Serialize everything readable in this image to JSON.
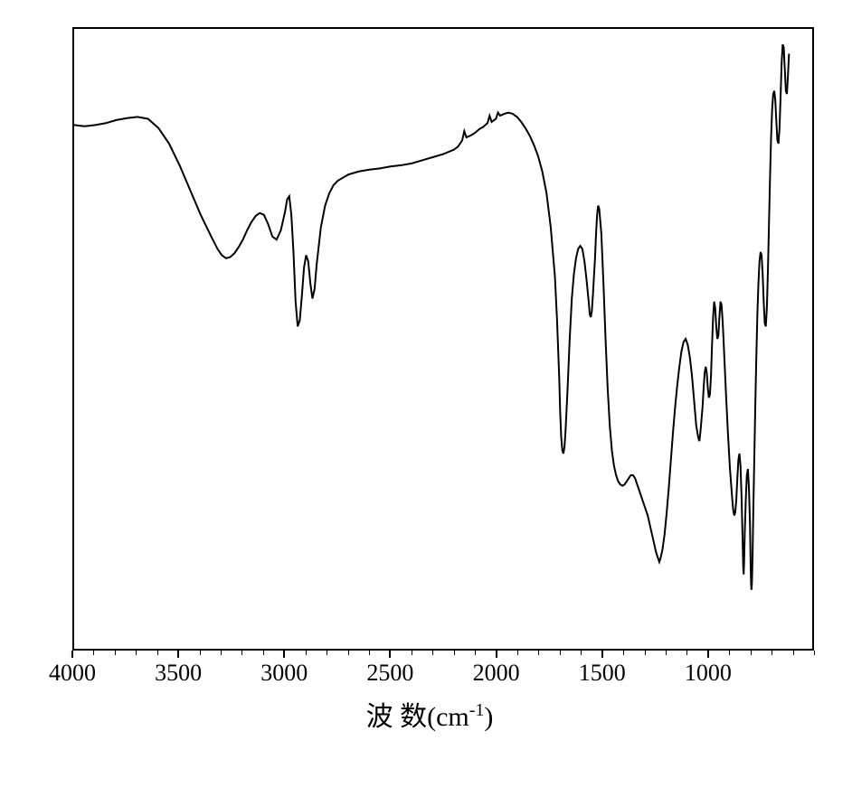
{
  "chart": {
    "type": "line",
    "x_axis": {
      "label_prefix": "波 数",
      "label_unit_open": "(cm",
      "label_unit_exp": "-1",
      "label_unit_close": ")",
      "min": 4000,
      "max": 500,
      "tick_labels": [
        "4000",
        "3500",
        "3000",
        "2500",
        "2000",
        "1500",
        "1000"
      ],
      "tick_values": [
        4000,
        3500,
        3000,
        2500,
        2000,
        1500,
        1000
      ],
      "minor_tick_step": 100,
      "label_fontsize": 26,
      "title_fontsize": 30
    },
    "y_axis": {
      "show_ticks": false,
      "show_labels": false,
      "min": 0,
      "max": 100
    },
    "line_color": "#000000",
    "line_width": 2,
    "border_color": "#000000",
    "border_width": 2,
    "background_color": "#ffffff",
    "data_points": [
      [
        4000,
        84.5
      ],
      [
        3950,
        84.3
      ],
      [
        3900,
        84.5
      ],
      [
        3850,
        84.8
      ],
      [
        3800,
        85.3
      ],
      [
        3750,
        85.6
      ],
      [
        3700,
        85.8
      ],
      [
        3650,
        85.5
      ],
      [
        3600,
        84.0
      ],
      [
        3550,
        81.5
      ],
      [
        3500,
        78.0
      ],
      [
        3450,
        74.0
      ],
      [
        3400,
        70.0
      ],
      [
        3350,
        66.5
      ],
      [
        3320,
        64.5
      ],
      [
        3300,
        63.5
      ],
      [
        3280,
        63.0
      ],
      [
        3260,
        63.2
      ],
      [
        3240,
        63.8
      ],
      [
        3220,
        64.8
      ],
      [
        3200,
        66.0
      ],
      [
        3180,
        67.5
      ],
      [
        3160,
        68.8
      ],
      [
        3140,
        69.8
      ],
      [
        3120,
        70.3
      ],
      [
        3100,
        70.0
      ],
      [
        3080,
        68.5
      ],
      [
        3060,
        66.5
      ],
      [
        3040,
        66.0
      ],
      [
        3020,
        67.5
      ],
      [
        3000,
        70.5
      ],
      [
        2990,
        72.5
      ],
      [
        2980,
        73.0
      ],
      [
        2970,
        70.0
      ],
      [
        2960,
        64.0
      ],
      [
        2950,
        56.0
      ],
      [
        2940,
        52.0
      ],
      [
        2930,
        53.0
      ],
      [
        2920,
        57.0
      ],
      [
        2910,
        61.5
      ],
      [
        2900,
        63.5
      ],
      [
        2890,
        62.5
      ],
      [
        2880,
        59.0
      ],
      [
        2870,
        56.5
      ],
      [
        2860,
        58.0
      ],
      [
        2850,
        62.0
      ],
      [
        2830,
        68.0
      ],
      [
        2810,
        71.5
      ],
      [
        2790,
        73.5
      ],
      [
        2770,
        74.8
      ],
      [
        2750,
        75.5
      ],
      [
        2700,
        76.5
      ],
      [
        2650,
        77.0
      ],
      [
        2600,
        77.3
      ],
      [
        2550,
        77.5
      ],
      [
        2500,
        77.8
      ],
      [
        2450,
        78.0
      ],
      [
        2400,
        78.3
      ],
      [
        2350,
        78.8
      ],
      [
        2300,
        79.3
      ],
      [
        2250,
        79.8
      ],
      [
        2200,
        80.5
      ],
      [
        2180,
        81.0
      ],
      [
        2160,
        82.0
      ],
      [
        2150,
        83.5
      ],
      [
        2140,
        82.5
      ],
      [
        2120,
        82.8
      ],
      [
        2100,
        83.2
      ],
      [
        2080,
        83.8
      ],
      [
        2060,
        84.2
      ],
      [
        2040,
        84.8
      ],
      [
        2030,
        86.0
      ],
      [
        2020,
        85.0
      ],
      [
        2000,
        85.5
      ],
      [
        1990,
        86.5
      ],
      [
        1980,
        86.0
      ],
      [
        1960,
        86.3
      ],
      [
        1940,
        86.5
      ],
      [
        1920,
        86.3
      ],
      [
        1900,
        85.8
      ],
      [
        1880,
        85.0
      ],
      [
        1860,
        84.0
      ],
      [
        1840,
        82.8
      ],
      [
        1820,
        81.3
      ],
      [
        1800,
        79.5
      ],
      [
        1780,
        77.0
      ],
      [
        1760,
        73.5
      ],
      [
        1740,
        68.0
      ],
      [
        1720,
        60.0
      ],
      [
        1710,
        53.0
      ],
      [
        1700,
        44.0
      ],
      [
        1695,
        38.0
      ],
      [
        1690,
        34.0
      ],
      [
        1685,
        32.0
      ],
      [
        1680,
        31.5
      ],
      [
        1675,
        32.5
      ],
      [
        1670,
        35.0
      ],
      [
        1660,
        42.0
      ],
      [
        1650,
        50.0
      ],
      [
        1640,
        56.5
      ],
      [
        1630,
        60.5
      ],
      [
        1620,
        63.0
      ],
      [
        1610,
        64.5
      ],
      [
        1600,
        65.0
      ],
      [
        1590,
        64.5
      ],
      [
        1580,
        62.5
      ],
      [
        1570,
        59.5
      ],
      [
        1560,
        56.0
      ],
      [
        1555,
        54.0
      ],
      [
        1550,
        53.5
      ],
      [
        1545,
        54.5
      ],
      [
        1540,
        57.0
      ],
      [
        1530,
        63.0
      ],
      [
        1525,
        67.0
      ],
      [
        1520,
        70.0
      ],
      [
        1515,
        71.5
      ],
      [
        1510,
        71.0
      ],
      [
        1500,
        67.0
      ],
      [
        1490,
        59.0
      ],
      [
        1480,
        50.0
      ],
      [
        1470,
        42.0
      ],
      [
        1460,
        36.0
      ],
      [
        1450,
        32.0
      ],
      [
        1440,
        29.5
      ],
      [
        1430,
        28.0
      ],
      [
        1420,
        27.0
      ],
      [
        1410,
        26.5
      ],
      [
        1400,
        26.3
      ],
      [
        1390,
        26.5
      ],
      [
        1380,
        27.0
      ],
      [
        1370,
        27.5
      ],
      [
        1360,
        28.0
      ],
      [
        1350,
        28.0
      ],
      [
        1340,
        27.5
      ],
      [
        1330,
        26.5
      ],
      [
        1320,
        25.5
      ],
      [
        1310,
        24.5
      ],
      [
        1300,
        23.5
      ],
      [
        1290,
        22.5
      ],
      [
        1280,
        21.5
      ],
      [
        1270,
        20.0
      ],
      [
        1260,
        18.5
      ],
      [
        1250,
        17.0
      ],
      [
        1240,
        15.5
      ],
      [
        1230,
        14.5
      ],
      [
        1225,
        14.0
      ],
      [
        1220,
        14.5
      ],
      [
        1210,
        16.0
      ],
      [
        1200,
        18.5
      ],
      [
        1190,
        22.0
      ],
      [
        1180,
        26.0
      ],
      [
        1170,
        30.5
      ],
      [
        1160,
        35.0
      ],
      [
        1150,
        39.0
      ],
      [
        1140,
        42.5
      ],
      [
        1130,
        45.5
      ],
      [
        1120,
        48.0
      ],
      [
        1110,
        49.5
      ],
      [
        1100,
        50.0
      ],
      [
        1090,
        49.0
      ],
      [
        1080,
        47.0
      ],
      [
        1070,
        44.0
      ],
      [
        1060,
        40.0
      ],
      [
        1050,
        36.0
      ],
      [
        1040,
        34.0
      ],
      [
        1035,
        33.5
      ],
      [
        1030,
        35.0
      ],
      [
        1020,
        39.0
      ],
      [
        1015,
        42.0
      ],
      [
        1010,
        44.5
      ],
      [
        1005,
        45.5
      ],
      [
        1000,
        44.5
      ],
      [
        995,
        42.0
      ],
      [
        990,
        40.5
      ],
      [
        985,
        41.0
      ],
      [
        980,
        44.0
      ],
      [
        975,
        49.0
      ],
      [
        970,
        53.5
      ],
      [
        965,
        56.0
      ],
      [
        960,
        55.0
      ],
      [
        955,
        52.0
      ],
      [
        950,
        50.0
      ],
      [
        945,
        50.5
      ],
      [
        940,
        53.5
      ],
      [
        935,
        56.0
      ],
      [
        930,
        55.5
      ],
      [
        925,
        53.0
      ],
      [
        920,
        49.5
      ],
      [
        910,
        42.0
      ],
      [
        900,
        35.0
      ],
      [
        890,
        29.0
      ],
      [
        880,
        24.5
      ],
      [
        875,
        22.5
      ],
      [
        870,
        21.5
      ],
      [
        865,
        22.0
      ],
      [
        860,
        24.0
      ],
      [
        855,
        27.5
      ],
      [
        850,
        30.5
      ],
      [
        845,
        31.5
      ],
      [
        840,
        29.5
      ],
      [
        835,
        24.5
      ],
      [
        830,
        17.5
      ],
      [
        827,
        13.0
      ],
      [
        825,
        12.0
      ],
      [
        823,
        14.0
      ],
      [
        820,
        18.5
      ],
      [
        815,
        24.0
      ],
      [
        810,
        28.0
      ],
      [
        805,
        29.0
      ],
      [
        800,
        26.0
      ],
      [
        795,
        20.0
      ],
      [
        792,
        13.5
      ],
      [
        790,
        10.5
      ],
      [
        788,
        9.5
      ],
      [
        786,
        10.5
      ],
      [
        783,
        14.5
      ],
      [
        780,
        21.0
      ],
      [
        775,
        30.0
      ],
      [
        770,
        39.0
      ],
      [
        765,
        47.0
      ],
      [
        760,
        54.0
      ],
      [
        755,
        59.0
      ],
      [
        750,
        62.5
      ],
      [
        745,
        64.0
      ],
      [
        740,
        63.5
      ],
      [
        735,
        60.5
      ],
      [
        730,
        56.0
      ],
      [
        725,
        52.5
      ],
      [
        720,
        52.0
      ],
      [
        715,
        55.0
      ],
      [
        710,
        61.0
      ],
      [
        705,
        68.5
      ],
      [
        700,
        76.0
      ],
      [
        695,
        82.5
      ],
      [
        690,
        87.0
      ],
      [
        685,
        89.5
      ],
      [
        680,
        90.0
      ],
      [
        675,
        88.5
      ],
      [
        670,
        85.0
      ],
      [
        665,
        82.0
      ],
      [
        660,
        81.5
      ],
      [
        655,
        84.0
      ],
      [
        650,
        89.0
      ],
      [
        645,
        94.5
      ],
      [
        640,
        97.5
      ],
      [
        635,
        97.0
      ],
      [
        630,
        93.5
      ],
      [
        625,
        90.0
      ],
      [
        620,
        89.5
      ],
      [
        615,
        92.5
      ],
      [
        610,
        96.0
      ]
    ]
  }
}
